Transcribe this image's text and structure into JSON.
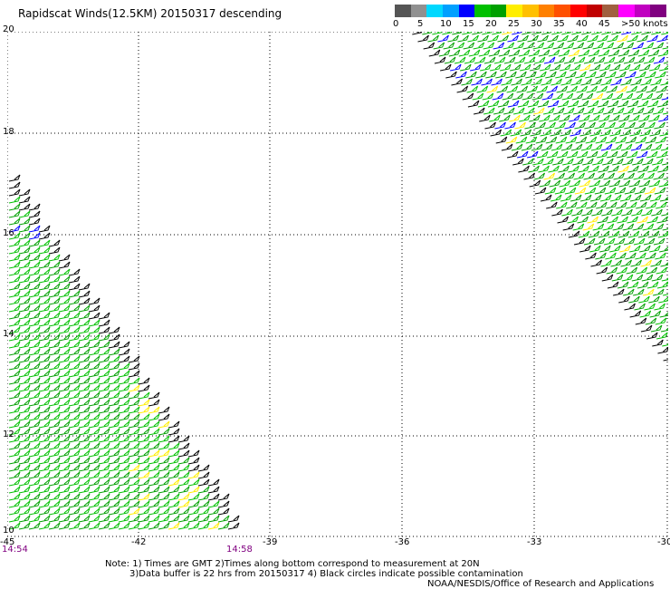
{
  "title": "Rapidscat Winds(12.5KM) 20150317 descending",
  "legend": {
    "colors": [
      "#555555",
      "#909090",
      "#00d8ff",
      "#00a0ff",
      "#0000ff",
      "#00c000",
      "#00a000",
      "#ffee00",
      "#ffc000",
      "#ff8000",
      "#ff5000",
      "#ff0000",
      "#c00000",
      "#a06040",
      "#ff00ff",
      "#c000c0",
      "#800080"
    ],
    "labels": [
      "0",
      "5",
      "10",
      "15",
      "20",
      "25",
      "30",
      "35",
      "40",
      "45",
      ">50 knots"
    ]
  },
  "map": {
    "lat_labels": [
      "20",
      "18",
      "16",
      "14",
      "12",
      "10"
    ],
    "lon_labels": [
      "-45",
      "-42",
      "-39",
      "-36",
      "-33",
      "-30"
    ],
    "time_labels": [
      "14:54",
      "14:58"
    ]
  },
  "notes": {
    "line1": "Note: 1) Times are GMT 2)Times along bottom correspond to measurement at 20N",
    "line2": "3)Data buffer is 22 hrs from 20150317 4) Black circles indicate possible contamination",
    "line3": "NOAA/NESDIS/Office of Research and Applications"
  }
}
